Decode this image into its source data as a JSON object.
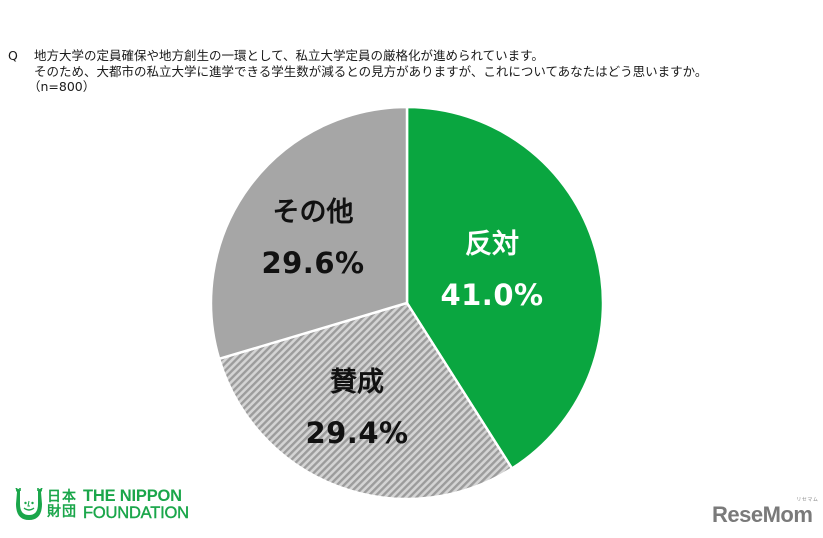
{
  "question": {
    "marker": "Q",
    "line1": "地方大学の定員確保や地方創生の一環として、私立大学定員の厳格化が進められています。",
    "line2": "そのため、大都市の私立大学に進学できる学生数が減るとの見方がありますが、これについてあなたはどう思いますか。",
    "sample": "（n=800）"
  },
  "slices": [
    {
      "label": "反対",
      "pct_text": "41.0%",
      "value": 41.0,
      "color": "#0aa640",
      "text_color": "#ffffff",
      "pattern": "solid"
    },
    {
      "label": "賛成",
      "pct_text": "29.4%",
      "value": 29.4,
      "color": "#c8c8c8",
      "stripe_color": "#9a9a9a",
      "text_color": "#111111",
      "pattern": "diagonal-stripes"
    },
    {
      "label": "その他",
      "pct_text": "29.6%",
      "value": 29.6,
      "color": "#a6a6a6",
      "text_color": "#111111",
      "pattern": "solid"
    }
  ],
  "logos": {
    "nippon": {
      "kanji_line1": "日本",
      "kanji_line2": "財団",
      "eng_line1": "THE NIPPON",
      "eng_line2": "FOUNDATION",
      "color": "#1aa64a"
    },
    "resemom": {
      "text": "ReseMom",
      "sub": "リセマム",
      "color": "#7a7a7a"
    }
  },
  "chart_data": {
    "type": "pie",
    "title": "地方大学の定員確保や地方創生の一環として、私立大学定員の厳格化が進められています。そのため、大都市の私立大学に進学できる学生数が減るとの見方がありますが、これについてあなたはどう思いますか。",
    "subtitle": "（n=800）",
    "categories": [
      "反対",
      "賛成",
      "その他"
    ],
    "values": [
      41.0,
      29.4,
      29.6
    ],
    "unit": "%",
    "start_angle": "12 o'clock, clockwise",
    "colors": [
      "#0aa640",
      "#c8c8c8 (hatched)",
      "#a6a6a6"
    ],
    "legend": "none (labels inside slices)",
    "n": 800
  }
}
